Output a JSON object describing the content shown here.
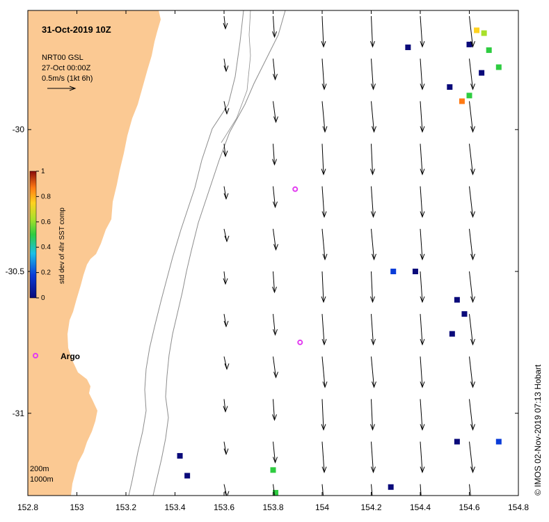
{
  "title": "31-Oct-2019 10Z",
  "info": {
    "line1": "NRT00 GSL",
    "line2": "27-Oct 00:00Z",
    "line3": "0.5m/s (1kt 6h)"
  },
  "credit": "© IMOS 02-Nov-2019 07:13 Hobart",
  "argo_label": "Argo",
  "depth_legend": [
    "200m",
    "1000m"
  ],
  "colorbar": {
    "label": "std dev of 4hr SST comp",
    "ticks": [
      "0",
      "0.2",
      "0.4",
      "0.6",
      "0.8",
      "1"
    ]
  },
  "axes": {
    "x_ticks": [
      "152.8",
      "153",
      "153.2",
      "153.4",
      "153.6",
      "153.8",
      "154",
      "154.2",
      "154.4",
      "154.6",
      "154.8"
    ],
    "y_ticks": [
      "-30",
      "-30.5",
      "-31"
    ],
    "x_range": [
      152.8,
      154.8
    ],
    "y_range": [
      -31.29,
      -29.58
    ]
  },
  "colors": {
    "land": "#fbc993",
    "argo": "#e23cf0",
    "arrow": "#000000",
    "contour": "#8c8c8c"
  },
  "argo_floats": [
    {
      "lon": 153.89,
      "lat": -30.21
    },
    {
      "lon": 153.91,
      "lat": -30.75
    }
  ],
  "current_field": {
    "lons": [
      153.6,
      153.8,
      154.0,
      154.2,
      154.4,
      154.6,
      154.8
    ],
    "lats": [
      -29.6,
      -29.75,
      -29.9,
      -30.05,
      -30.2,
      -30.35,
      -30.5,
      -30.65,
      -30.8,
      -30.95,
      -31.1,
      -31.25
    ]
  },
  "sst_std_cells": [
    {
      "lon": 154.6,
      "lat": -29.7,
      "value": 0.1
    },
    {
      "lon": 154.63,
      "lat": -29.65,
      "value": 0.8
    },
    {
      "lon": 154.66,
      "lat": -29.66,
      "value": 0.7
    },
    {
      "lon": 154.68,
      "lat": -29.72,
      "value": 0.5
    },
    {
      "lon": 154.72,
      "lat": -29.78,
      "value": 0.6
    },
    {
      "lon": 154.65,
      "lat": -29.8,
      "value": 0.05
    },
    {
      "lon": 154.6,
      "lat": -29.88,
      "value": 0.5
    },
    {
      "lon": 154.57,
      "lat": -29.9,
      "value": 0.9
    },
    {
      "lon": 154.52,
      "lat": -29.85,
      "value": 0.05
    },
    {
      "lon": 154.35,
      "lat": -29.71,
      "value": 0.05
    },
    {
      "lon": 154.29,
      "lat": -30.5,
      "value": 0.2
    },
    {
      "lon": 154.38,
      "lat": -30.5,
      "value": 0.05
    },
    {
      "lon": 154.55,
      "lat": -30.6,
      "value": 0.05
    },
    {
      "lon": 154.58,
      "lat": -30.65,
      "value": 0.1
    },
    {
      "lon": 154.53,
      "lat": -30.72,
      "value": 0.05
    },
    {
      "lon": 153.42,
      "lat": -31.15,
      "value": 0.05
    },
    {
      "lon": 153.45,
      "lat": -31.22,
      "value": 0.05
    },
    {
      "lon": 153.8,
      "lat": -31.2,
      "value": 0.5
    },
    {
      "lon": 153.81,
      "lat": -31.28,
      "value": 0.5
    },
    {
      "lon": 154.28,
      "lat": -31.26,
      "value": 0.1
    },
    {
      "lon": 154.55,
      "lat": -31.1,
      "value": 0.05
    },
    {
      "lon": 154.72,
      "lat": -31.1,
      "value": 0.3
    }
  ]
}
